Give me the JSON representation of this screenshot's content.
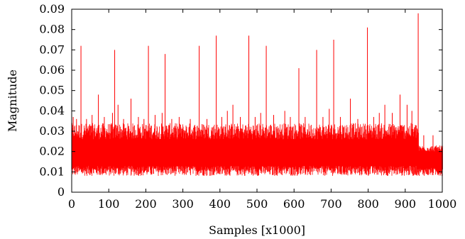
{
  "chart_data": {
    "type": "line",
    "title": "",
    "xlabel": "Samples [x1000]",
    "ylabel": "Magnitude",
    "xlim": [
      0,
      1000
    ],
    "ylim": [
      0,
      0.09
    ],
    "x_ticks": [
      "0",
      "100",
      "200",
      "300",
      "400",
      "500",
      "600",
      "700",
      "800",
      "900",
      "1000"
    ],
    "y_ticks": [
      "0",
      "0.01",
      "0.02",
      "0.03",
      "0.04",
      "0.05",
      "0.06",
      "0.07",
      "0.08",
      "0.09"
    ],
    "grid": false,
    "legend": "none",
    "series_color": "#ff0000",
    "noise_band": {
      "segments": [
        {
          "x_start": 0,
          "x_end": 935,
          "low_min": 0.008,
          "low_max": 0.013,
          "high_min": 0.026,
          "high_max": 0.034
        },
        {
          "x_start": 935,
          "x_end": 1000,
          "low_min": 0.008,
          "low_max": 0.012,
          "high_min": 0.02,
          "high_max": 0.023
        }
      ]
    },
    "spikes": [
      {
        "x": 4,
        "y": 0.037
      },
      {
        "x": 13,
        "y": 0.036
      },
      {
        "x": 25,
        "y": 0.072
      },
      {
        "x": 40,
        "y": 0.036
      },
      {
        "x": 55,
        "y": 0.038
      },
      {
        "x": 72,
        "y": 0.048
      },
      {
        "x": 88,
        "y": 0.037
      },
      {
        "x": 110,
        "y": 0.039
      },
      {
        "x": 116,
        "y": 0.07
      },
      {
        "x": 125,
        "y": 0.043
      },
      {
        "x": 140,
        "y": 0.036
      },
      {
        "x": 160,
        "y": 0.046
      },
      {
        "x": 180,
        "y": 0.037
      },
      {
        "x": 195,
        "y": 0.036
      },
      {
        "x": 207,
        "y": 0.072
      },
      {
        "x": 225,
        "y": 0.038
      },
      {
        "x": 244,
        "y": 0.039
      },
      {
        "x": 252,
        "y": 0.068
      },
      {
        "x": 270,
        "y": 0.036
      },
      {
        "x": 290,
        "y": 0.037
      },
      {
        "x": 320,
        "y": 0.036
      },
      {
        "x": 344,
        "y": 0.072
      },
      {
        "x": 365,
        "y": 0.036
      },
      {
        "x": 390,
        "y": 0.077
      },
      {
        "x": 405,
        "y": 0.037
      },
      {
        "x": 420,
        "y": 0.04
      },
      {
        "x": 435,
        "y": 0.043
      },
      {
        "x": 455,
        "y": 0.037
      },
      {
        "x": 478,
        "y": 0.077
      },
      {
        "x": 495,
        "y": 0.037
      },
      {
        "x": 510,
        "y": 0.039
      },
      {
        "x": 525,
        "y": 0.072
      },
      {
        "x": 545,
        "y": 0.038
      },
      {
        "x": 575,
        "y": 0.04
      },
      {
        "x": 590,
        "y": 0.037
      },
      {
        "x": 613,
        "y": 0.061
      },
      {
        "x": 630,
        "y": 0.037
      },
      {
        "x": 661,
        "y": 0.07
      },
      {
        "x": 678,
        "y": 0.037
      },
      {
        "x": 695,
        "y": 0.041
      },
      {
        "x": 707,
        "y": 0.075
      },
      {
        "x": 725,
        "y": 0.037
      },
      {
        "x": 752,
        "y": 0.046
      },
      {
        "x": 772,
        "y": 0.036
      },
      {
        "x": 798,
        "y": 0.081
      },
      {
        "x": 815,
        "y": 0.037
      },
      {
        "x": 830,
        "y": 0.039
      },
      {
        "x": 845,
        "y": 0.043
      },
      {
        "x": 865,
        "y": 0.039
      },
      {
        "x": 886,
        "y": 0.048
      },
      {
        "x": 905,
        "y": 0.043
      },
      {
        "x": 918,
        "y": 0.04
      },
      {
        "x": 935,
        "y": 0.088
      },
      {
        "x": 950,
        "y": 0.028
      },
      {
        "x": 975,
        "y": 0.028
      }
    ]
  }
}
